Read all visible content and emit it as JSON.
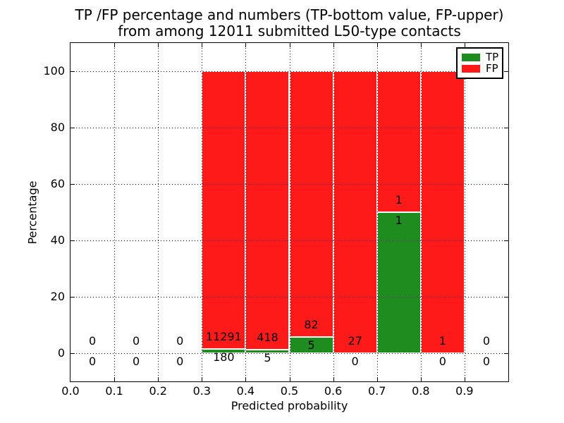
{
  "chart_data": {
    "type": "bar",
    "stacked": true,
    "title": "TP /FP percentage and numbers (TP-bottom value, FP-upper)\nfrom among 12011 submitted L50-type contacts",
    "title_lines": [
      "TP /FP percentage and numbers (TP-bottom value, FP-upper)",
      "from among 12011 submitted L50-type contacts"
    ],
    "total_submitted_contacts": 12011,
    "contact_type": "L50",
    "xlabel": "Predicted probability",
    "ylabel": "Percentage",
    "xlim": [
      0.0,
      1.0
    ],
    "ylim": [
      -10,
      110
    ],
    "xtick_labels": [
      "0.0",
      "0.1",
      "0.2",
      "0.3",
      "0.4",
      "0.5",
      "0.6",
      "0.7",
      "0.8",
      "0.9"
    ],
    "ytick_values": [
      0,
      20,
      40,
      60,
      80,
      100
    ],
    "grid": "dotted, drawn above bars",
    "bar_edge_color": "#ffffff",
    "bin_width": 0.1,
    "categories": [
      "0.0-0.1",
      "0.1-0.2",
      "0.2-0.3",
      "0.3-0.4",
      "0.4-0.5",
      "0.5-0.6",
      "0.6-0.7",
      "0.7-0.8",
      "0.8-0.9",
      "0.9-1.0"
    ],
    "series": [
      {
        "name": "TP",
        "color": "#1e8c1e",
        "counts": [
          0,
          0,
          0,
          180,
          5,
          5,
          0,
          1,
          0,
          0
        ]
      },
      {
        "name": "FP",
        "color": "#ff1a1a",
        "counts": [
          0,
          0,
          0,
          11291,
          418,
          82,
          27,
          1,
          1,
          0
        ]
      }
    ],
    "bar_heights_note": "each non-empty bin is stacked to 100%; TP% = TP/(TP+FP)*100",
    "tp_percentages": [
      0,
      0,
      0,
      1.57,
      1.18,
      5.75,
      0,
      50,
      0,
      0
    ],
    "fp_percentages": [
      0,
      0,
      0,
      98.43,
      98.82,
      94.25,
      100,
      50,
      100,
      0
    ],
    "legend": {
      "position": "upper right",
      "items": [
        {
          "label": "TP",
          "color": "#1e8c1e"
        },
        {
          "label": "FP",
          "color": "#ff1a1a"
        }
      ]
    }
  }
}
